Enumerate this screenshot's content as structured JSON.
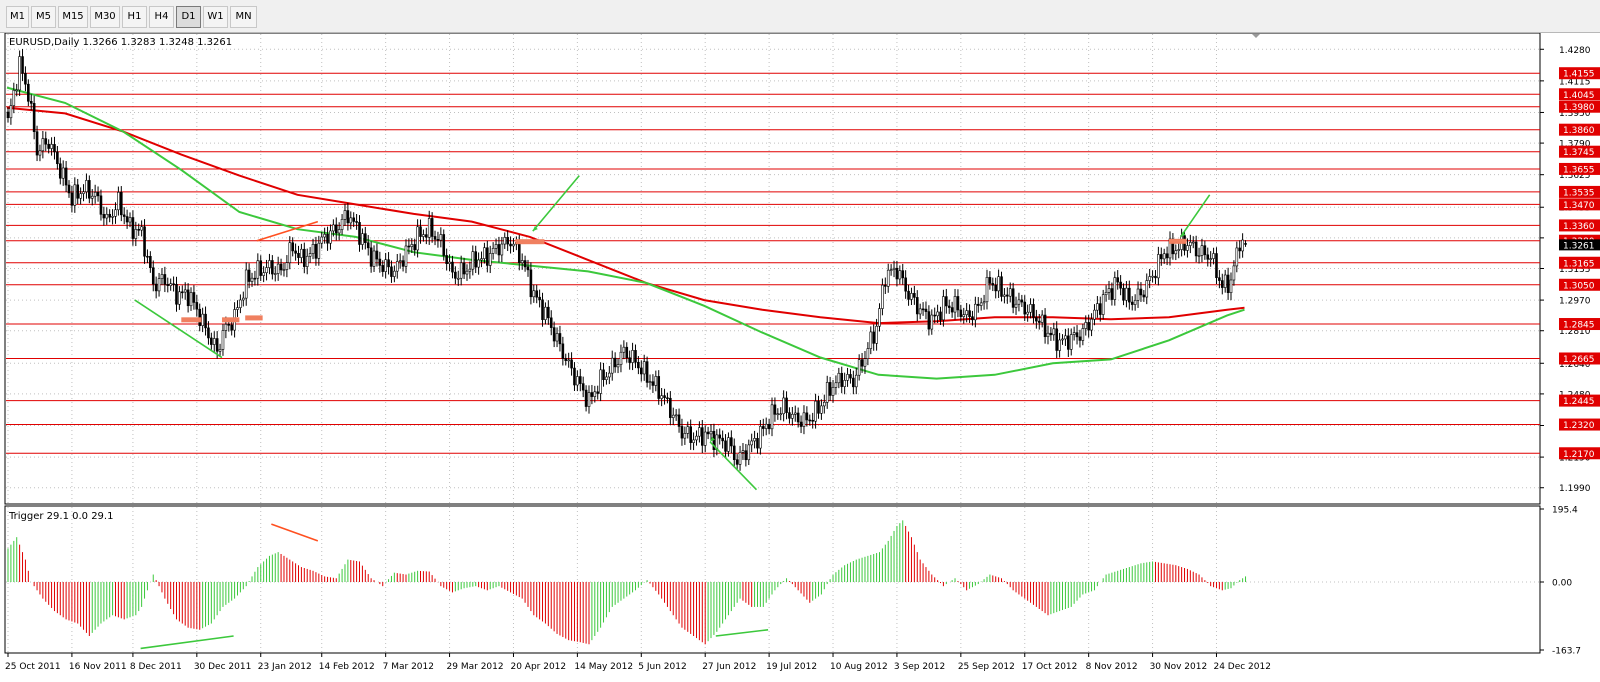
{
  "toolbar": {
    "timeframes": [
      "M1",
      "M5",
      "M15",
      "M30",
      "H1",
      "H4",
      "D1",
      "W1",
      "MN"
    ],
    "active": "D1"
  },
  "colors": {
    "up_candle": "#ffffff",
    "down_candle": "#000000",
    "level_line": "#e00000",
    "level_label_bg": "#e00000",
    "ma_slow": "#e00000",
    "ma_fast": "#3cc83c",
    "histogram_up": "#3cc83c",
    "histogram_down": "#e00000",
    "current_price_label_bg": "#000000",
    "annotation_box": "#f08060"
  },
  "chart_data": {
    "type": "candlestick",
    "title": "EURUSD,Daily 1.3266 1.3283 1.3248 1.3261",
    "symbol": "EURUSD",
    "timeframe": "Daily",
    "ohlc": {
      "open": 1.3266,
      "high": 1.3283,
      "low": 1.3248,
      "close": 1.3261
    },
    "ylim": [
      1.1905,
      1.4365
    ],
    "y_ticks": [
      1.428,
      1.4115,
      1.395,
      1.379,
      1.3625,
      1.3455,
      1.3295,
      1.3135,
      1.297,
      1.281,
      1.264,
      1.248,
      1.2315,
      1.215,
      1.199
    ],
    "current_price": 1.3261,
    "x_ticks": [
      "25 Oct 2011",
      "16 Nov 2011",
      "8 Dec 2011",
      "30 Dec 2011",
      "23 Jan 2012",
      "14 Feb 2012",
      "7 Mar 2012",
      "29 Mar 2012",
      "20 Apr 2012",
      "14 May 2012",
      "5 Jun 2012",
      "27 Jun 2012",
      "19 Jul 2012",
      "10 Aug 2012",
      "3 Sep 2012",
      "25 Sep 2012",
      "17 Oct 2012",
      "8 Nov 2012",
      "30 Nov 2012",
      "24 Dec 2012"
    ],
    "horizontal_levels": [
      1.4155,
      1.4045,
      1.398,
      1.386,
      1.3745,
      1.3655,
      1.3535,
      1.347,
      1.336,
      1.328,
      1.3165,
      1.305,
      1.2845,
      1.2665,
      1.2445,
      1.232,
      1.217
    ],
    "price_path": [
      [
        0,
        1.39
      ],
      [
        4,
        1.42
      ],
      [
        7,
        1.405
      ],
      [
        10,
        1.375
      ],
      [
        14,
        1.38
      ],
      [
        18,
        1.365
      ],
      [
        22,
        1.35
      ],
      [
        26,
        1.355
      ],
      [
        30,
        1.352
      ],
      [
        34,
        1.338
      ],
      [
        38,
        1.348
      ],
      [
        42,
        1.335
      ],
      [
        46,
        1.332
      ],
      [
        50,
        1.305
      ],
      [
        54,
        1.308
      ],
      [
        58,
        1.3
      ],
      [
        62,
        1.3
      ],
      [
        64,
        1.295
      ],
      [
        68,
        1.282
      ],
      [
        72,
        1.27
      ],
      [
        74,
        1.28
      ],
      [
        78,
        1.288
      ],
      [
        82,
        1.307
      ],
      [
        86,
        1.312
      ],
      [
        90,
        1.314
      ],
      [
        94,
        1.312
      ],
      [
        98,
        1.325
      ],
      [
        101,
        1.318
      ],
      [
        105,
        1.322
      ],
      [
        109,
        1.33
      ],
      [
        113,
        1.334
      ],
      [
        117,
        1.342
      ],
      [
        121,
        1.332
      ],
      [
        125,
        1.32
      ],
      [
        129,
        1.315
      ],
      [
        133,
        1.312
      ],
      [
        137,
        1.322
      ],
      [
        141,
        1.33
      ],
      [
        145,
        1.334
      ],
      [
        149,
        1.327
      ],
      [
        153,
        1.31
      ],
      [
        157,
        1.312
      ],
      [
        161,
        1.318
      ],
      [
        165,
        1.32
      ],
      [
        169,
        1.325
      ],
      [
        173,
        1.328
      ],
      [
        177,
        1.318
      ],
      [
        181,
        1.3
      ],
      [
        185,
        1.29
      ],
      [
        189,
        1.276
      ],
      [
        193,
        1.263
      ],
      [
        197,
        1.252
      ],
      [
        200,
        1.244
      ],
      [
        204,
        1.255
      ],
      [
        208,
        1.262
      ],
      [
        212,
        1.27
      ],
      [
        216,
        1.265
      ],
      [
        220,
        1.257
      ],
      [
        224,
        1.25
      ],
      [
        228,
        1.24
      ],
      [
        232,
        1.228
      ],
      [
        236,
        1.225
      ],
      [
        240,
        1.227
      ],
      [
        244,
        1.224
      ],
      [
        248,
        1.222
      ],
      [
        251,
        1.213
      ],
      [
        255,
        1.22
      ],
      [
        259,
        1.227
      ],
      [
        263,
        1.237
      ],
      [
        267,
        1.241
      ],
      [
        271,
        1.235
      ],
      [
        275,
        1.234
      ],
      [
        279,
        1.24
      ],
      [
        283,
        1.251
      ],
      [
        287,
        1.256
      ],
      [
        291,
        1.255
      ],
      [
        295,
        1.268
      ],
      [
        299,
        1.283
      ],
      [
        302,
        1.31
      ],
      [
        306,
        1.313
      ],
      [
        310,
        1.3
      ],
      [
        314,
        1.292
      ],
      [
        318,
        1.286
      ],
      [
        322,
        1.294
      ],
      [
        326,
        1.294
      ],
      [
        330,
        1.288
      ],
      [
        334,
        1.293
      ],
      [
        338,
        1.307
      ],
      [
        342,
        1.302
      ],
      [
        346,
        1.297
      ],
      [
        350,
        1.293
      ],
      [
        354,
        1.288
      ],
      [
        358,
        1.28
      ],
      [
        362,
        1.275
      ],
      [
        366,
        1.277
      ],
      [
        370,
        1.28
      ],
      [
        374,
        1.29
      ],
      [
        378,
        1.3
      ],
      [
        382,
        1.306
      ],
      [
        386,
        1.296
      ],
      [
        390,
        1.3
      ],
      [
        394,
        1.31
      ],
      [
        398,
        1.322
      ],
      [
        402,
        1.324
      ],
      [
        406,
        1.327
      ],
      [
        410,
        1.322
      ],
      [
        414,
        1.32
      ],
      [
        418,
        1.304
      ],
      [
        421,
        1.307
      ],
      [
        424,
        1.328
      ],
      [
        426,
        1.326
      ]
    ],
    "moving_averages": [
      {
        "name": "MA slow",
        "color": "#e00000",
        "points": [
          [
            0,
            1.3975
          ],
          [
            20,
            1.3945
          ],
          [
            40,
            1.385
          ],
          [
            60,
            1.373
          ],
          [
            80,
            1.362
          ],
          [
            100,
            1.352
          ],
          [
            120,
            1.347
          ],
          [
            140,
            1.342
          ],
          [
            160,
            1.338
          ],
          [
            180,
            1.33
          ],
          [
            200,
            1.318
          ],
          [
            220,
            1.306
          ],
          [
            240,
            1.297
          ],
          [
            260,
            1.292
          ],
          [
            280,
            1.288
          ],
          [
            300,
            1.285
          ],
          [
            320,
            1.286
          ],
          [
            340,
            1.288
          ],
          [
            360,
            1.288
          ],
          [
            380,
            1.287
          ],
          [
            400,
            1.288
          ],
          [
            420,
            1.292
          ],
          [
            426,
            1.293
          ]
        ]
      },
      {
        "name": "MA fast",
        "color": "#3cc83c",
        "points": [
          [
            0,
            1.408
          ],
          [
            20,
            1.4
          ],
          [
            40,
            1.385
          ],
          [
            60,
            1.365
          ],
          [
            80,
            1.343
          ],
          [
            100,
            1.334
          ],
          [
            120,
            1.33
          ],
          [
            140,
            1.322
          ],
          [
            160,
            1.318
          ],
          [
            180,
            1.315
          ],
          [
            200,
            1.312
          ],
          [
            220,
            1.306
          ],
          [
            240,
            1.294
          ],
          [
            260,
            1.28
          ],
          [
            280,
            1.267
          ],
          [
            300,
            1.258
          ],
          [
            320,
            1.256
          ],
          [
            340,
            1.258
          ],
          [
            360,
            1.264
          ],
          [
            380,
            1.266
          ],
          [
            400,
            1.276
          ],
          [
            420,
            1.289
          ],
          [
            426,
            1.292
          ]
        ]
      }
    ],
    "indicator": {
      "name": "Trigger",
      "label": "Trigger 29.1 0.0 29.1",
      "ylim": [
        -163.7,
        195.4
      ],
      "y_ticks": [
        195.4,
        0.0,
        -163.7
      ],
      "x_ticks_bars": [
        0,
        22,
        43,
        65,
        87,
        108,
        130,
        152,
        174,
        196,
        218,
        240,
        262,
        284,
        306,
        328,
        350,
        372,
        394,
        416
      ],
      "histogram": [
        [
          0,
          90
        ],
        [
          3,
          120
        ],
        [
          6,
          60
        ],
        [
          8,
          0
        ],
        [
          12,
          -40
        ],
        [
          16,
          -70
        ],
        [
          20,
          -90
        ],
        [
          24,
          -100
        ],
        [
          28,
          -130
        ],
        [
          32,
          -100
        ],
        [
          36,
          -80
        ],
        [
          40,
          -90
        ],
        [
          44,
          -80
        ],
        [
          46,
          -60
        ],
        [
          50,
          20
        ],
        [
          54,
          -40
        ],
        [
          58,
          -90
        ],
        [
          62,
          -110
        ],
        [
          66,
          -115
        ],
        [
          70,
          -100
        ],
        [
          74,
          -60
        ],
        [
          78,
          -40
        ],
        [
          82,
          -10
        ],
        [
          86,
          40
        ],
        [
          90,
          70
        ],
        [
          93,
          80
        ],
        [
          97,
          60
        ],
        [
          101,
          40
        ],
        [
          105,
          30
        ],
        [
          109,
          15
        ],
        [
          113,
          10
        ],
        [
          117,
          60
        ],
        [
          121,
          55
        ],
        [
          125,
          10
        ],
        [
          129,
          -10
        ],
        [
          133,
          25
        ],
        [
          137,
          20
        ],
        [
          141,
          30
        ],
        [
          145,
          28
        ],
        [
          149,
          -10
        ],
        [
          153,
          -25
        ],
        [
          157,
          -15
        ],
        [
          161,
          -10
        ],
        [
          165,
          -20
        ],
        [
          169,
          -10
        ],
        [
          173,
          -25
        ],
        [
          177,
          -40
        ],
        [
          181,
          -80
        ],
        [
          185,
          -100
        ],
        [
          189,
          -125
        ],
        [
          193,
          -140
        ],
        [
          197,
          -145
        ],
        [
          200,
          -150
        ],
        [
          204,
          -110
        ],
        [
          208,
          -60
        ],
        [
          212,
          -40
        ],
        [
          216,
          -20
        ],
        [
          220,
          5
        ],
        [
          224,
          -30
        ],
        [
          228,
          -70
        ],
        [
          232,
          -110
        ],
        [
          236,
          -130
        ],
        [
          240,
          -150
        ],
        [
          244,
          -120
        ],
        [
          248,
          -80
        ],
        [
          252,
          -40
        ],
        [
          256,
          -60
        ],
        [
          260,
          -60
        ],
        [
          264,
          -20
        ],
        [
          268,
          10
        ],
        [
          272,
          -20
        ],
        [
          276,
          -50
        ],
        [
          280,
          -30
        ],
        [
          284,
          20
        ],
        [
          288,
          45
        ],
        [
          292,
          60
        ],
        [
          296,
          70
        ],
        [
          300,
          80
        ],
        [
          303,
          110
        ],
        [
          306,
          150
        ],
        [
          308,
          165
        ],
        [
          311,
          120
        ],
        [
          314,
          60
        ],
        [
          318,
          20
        ],
        [
          322,
          -10
        ],
        [
          326,
          10
        ],
        [
          330,
          -20
        ],
        [
          334,
          -5
        ],
        [
          338,
          20
        ],
        [
          342,
          10
        ],
        [
          346,
          -20
        ],
        [
          350,
          -40
        ],
        [
          354,
          -60
        ],
        [
          358,
          -80
        ],
        [
          362,
          -70
        ],
        [
          366,
          -60
        ],
        [
          370,
          -30
        ],
        [
          374,
          -20
        ],
        [
          378,
          20
        ],
        [
          382,
          30
        ],
        [
          386,
          40
        ],
        [
          390,
          50
        ],
        [
          394,
          55
        ],
        [
          398,
          50
        ],
        [
          402,
          45
        ],
        [
          406,
          35
        ],
        [
          410,
          20
        ],
        [
          414,
          -10
        ],
        [
          418,
          -20
        ],
        [
          421,
          -15
        ],
        [
          424,
          5
        ],
        [
          426,
          15
        ]
      ]
    },
    "annotations": [
      {
        "type": "trendline",
        "panel": "price",
        "color": "#3cc83c",
        "from": [
          44,
          1.297
        ],
        "to": [
          74,
          1.267
        ]
      },
      {
        "type": "trendline",
        "panel": "price",
        "color": "#ff5020",
        "from": [
          86,
          1.328
        ],
        "to": [
          107,
          1.338
        ]
      },
      {
        "type": "trendline",
        "panel": "price",
        "color": "#3cc83c",
        "from": [
          181,
          1.333
        ],
        "to": [
          197,
          1.362
        ]
      },
      {
        "type": "trendline",
        "panel": "price",
        "color": "#3cc83c",
        "from": [
          242,
          1.223
        ],
        "to": [
          258,
          1.198
        ]
      },
      {
        "type": "trendline",
        "panel": "price",
        "color": "#3cc83c",
        "from": [
          404,
          1.33
        ],
        "to": [
          414,
          1.352
        ]
      },
      {
        "type": "trendline",
        "panel": "indicator",
        "color": "#3cc83c",
        "from": [
          46,
          -160
        ],
        "to": [
          78,
          -130
        ]
      },
      {
        "type": "trendline",
        "panel": "indicator",
        "color": "#ff5020",
        "from": [
          91,
          155
        ],
        "to": [
          107,
          110
        ]
      },
      {
        "type": "trendline",
        "panel": "indicator",
        "color": "#3cc83c",
        "from": [
          244,
          -130
        ],
        "to": [
          262,
          -115
        ]
      },
      {
        "type": "box",
        "panel": "price",
        "color": "#f08060",
        "x": [
          60,
          67
        ],
        "y": [
          1.2855,
          1.288
        ]
      },
      {
        "type": "box",
        "panel": "price",
        "color": "#f08060",
        "x": [
          74,
          80
        ],
        "y": [
          1.2855,
          1.288
        ]
      },
      {
        "type": "box",
        "panel": "price",
        "color": "#f08060",
        "x": [
          82,
          88
        ],
        "y": [
          1.287,
          1.289
        ]
      },
      {
        "type": "box",
        "panel": "price",
        "color": "#f08060",
        "x": [
          175,
          185
        ],
        "y": [
          1.3268,
          1.3288
        ]
      },
      {
        "type": "box",
        "panel": "price",
        "color": "#f08060",
        "x": [
          400,
          406
        ],
        "y": [
          1.327,
          1.329
        ]
      }
    ]
  }
}
